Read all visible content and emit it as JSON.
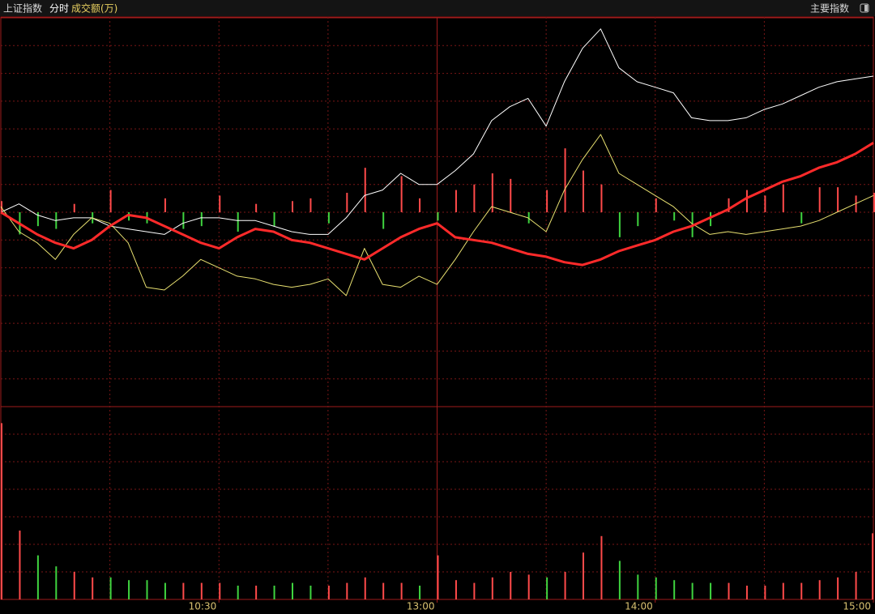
{
  "header": {
    "title": "上证指数",
    "mode": "分时",
    "metric": "成交额(万)",
    "menu": "主要指数"
  },
  "chart_data": [
    {
      "type": "line",
      "x": [
        0,
        5,
        10,
        15,
        20,
        25,
        30,
        35,
        40,
        45,
        50,
        55,
        60,
        65,
        70,
        75,
        80,
        85,
        90,
        95,
        100,
        105,
        110,
        115,
        120,
        125,
        130,
        135,
        140,
        145,
        150,
        155,
        160,
        165,
        170,
        175,
        180,
        185,
        190,
        195,
        200,
        205,
        210,
        215,
        220,
        225,
        230,
        235,
        240
      ],
      "xlim": [
        0,
        240
      ],
      "xticks": [
        {
          "value": 60,
          "label": "10:30"
        },
        {
          "value": 120,
          "label": "13:00"
        },
        {
          "value": 180,
          "label": "14:00"
        },
        {
          "value": 240,
          "label": "15:00"
        }
      ],
      "xgrid": [
        30,
        60,
        90,
        120,
        150,
        180,
        210
      ],
      "ylim": [
        -7,
        7
      ],
      "yticks": [
        -7,
        -6,
        -5,
        -4,
        -3,
        -2,
        -1,
        0,
        1,
        2,
        3,
        4,
        5,
        6,
        7
      ],
      "grid": true,
      "series": [
        {
          "color": "#ffffff",
          "width": 1,
          "values": [
            0,
            0.3,
            -0.1,
            -0.3,
            -0.2,
            -0.2,
            -0.5,
            -0.6,
            -0.7,
            -0.8,
            -0.4,
            -0.2,
            -0.2,
            -0.3,
            -0.3,
            -0.5,
            -0.7,
            -0.8,
            -0.8,
            -0.2,
            0.6,
            0.8,
            1.4,
            1.0,
            1.0,
            1.5,
            2.1,
            3.3,
            3.8,
            4.1,
            3.1,
            4.7,
            5.9,
            6.6,
            5.2,
            4.7,
            4.5,
            4.3,
            3.4,
            3.3,
            3.3,
            3.4,
            3.7,
            3.9,
            4.2,
            4.5,
            4.7,
            4.8,
            4.9
          ]
        },
        {
          "color": "#e8e070",
          "width": 1,
          "values": [
            0.2,
            -0.7,
            -1.1,
            -1.7,
            -0.8,
            -0.2,
            -0.4,
            -1.1,
            -2.7,
            -2.8,
            -2.3,
            -1.7,
            -2.0,
            -2.3,
            -2.4,
            -2.6,
            -2.7,
            -2.6,
            -2.4,
            -3.0,
            -1.3,
            -2.6,
            -2.7,
            -2.3,
            -2.6,
            -1.7,
            -0.7,
            0.2,
            0,
            -0.2,
            -0.7,
            0.8,
            1.9,
            2.8,
            1.4,
            1.0,
            0.6,
            0.2,
            -0.4,
            -0.8,
            -0.7,
            -0.8,
            -0.7,
            -0.6,
            -0.5,
            -0.3,
            0,
            0.3,
            0.6
          ]
        },
        {
          "color": "#ff2a2a",
          "width": 3,
          "values": [
            0,
            -0.4,
            -0.8,
            -1.1,
            -1.3,
            -1.0,
            -0.5,
            -0.1,
            -0.2,
            -0.5,
            -0.8,
            -1.1,
            -1.3,
            -0.9,
            -0.6,
            -0.7,
            -1.0,
            -1.1,
            -1.3,
            -1.5,
            -1.7,
            -1.3,
            -0.9,
            -0.6,
            -0.4,
            -0.9,
            -1.0,
            -1.1,
            -1.3,
            -1.5,
            -1.6,
            -1.8,
            -1.9,
            -1.7,
            -1.4,
            -1.2,
            -1.0,
            -0.7,
            -0.5,
            -0.2,
            0.1,
            0.5,
            0.8,
            1.1,
            1.3,
            1.6,
            1.8,
            2.1,
            2.5
          ]
        }
      ],
      "bars": {
        "up_color": "#ff4a4a",
        "down_color": "#3fd43f",
        "values": [
          0.4,
          -0.8,
          -0.5,
          -0.6,
          0.3,
          -0.4,
          0.8,
          -0.3,
          -0.4,
          0.5,
          -0.6,
          -0.5,
          0.6,
          -0.7,
          0.3,
          -0.5,
          0.4,
          0.5,
          -0.4,
          0.7,
          1.6,
          -0.6,
          1.3,
          0.5,
          -0.3,
          0.8,
          1.0,
          1.4,
          1.2,
          -0.4,
          0.8,
          2.3,
          1.5,
          1.0,
          -0.9,
          -0.5,
          0.5,
          -0.3,
          -0.9,
          -0.5,
          0.5,
          0.8,
          0.6,
          1.0,
          -0.4,
          0.9,
          0.9,
          0.6,
          0.7
        ]
      }
    },
    {
      "type": "bar",
      "ylim": [
        0,
        7
      ],
      "yticks": [
        0,
        1,
        2,
        3,
        4,
        5,
        6,
        7
      ],
      "grid": true,
      "up_color": "#ff4a4a",
      "down_color": "#3fd43f",
      "values": [
        6.4,
        2.5,
        1.6,
        1.2,
        1.0,
        0.8,
        0.8,
        0.7,
        0.7,
        0.6,
        0.6,
        0.6,
        0.6,
        0.5,
        0.5,
        0.5,
        0.6,
        0.5,
        0.5,
        0.6,
        0.8,
        0.6,
        0.6,
        0.5,
        1.6,
        0.7,
        0.6,
        0.8,
        1.0,
        0.9,
        0.8,
        1.0,
        1.7,
        2.3,
        1.4,
        0.9,
        0.8,
        0.7,
        0.6,
        0.6,
        0.6,
        0.5,
        0.5,
        0.6,
        0.6,
        0.7,
        0.8,
        1.0,
        2.4
      ]
    }
  ]
}
